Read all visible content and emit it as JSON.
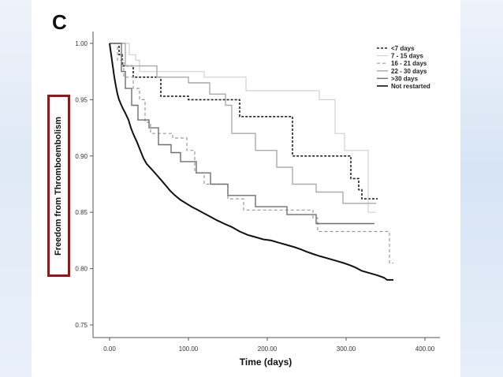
{
  "panel_label": "C",
  "chart_data": {
    "type": "line",
    "title": "",
    "xlabel": "Time (days)",
    "ylabel": "Freedom from Thromboembolism",
    "xlim": [
      0,
      400
    ],
    "ylim": [
      0.75,
      1.0
    ],
    "x_ticks": [
      0,
      100,
      200,
      300,
      400
    ],
    "x_tick_labels": [
      "0.00",
      "100.00",
      "200.00",
      "300.00",
      "400.00"
    ],
    "y_ticks": [
      0.75,
      0.8,
      0.85,
      0.9,
      0.95,
      1.0
    ],
    "y_tick_labels": [
      "0.75",
      "0.80",
      "0.85",
      "0.90",
      "0.95",
      "1.00"
    ],
    "legend_position": "top-right",
    "series": [
      {
        "name": "<7 days",
        "color": "#222222",
        "dash": "3,2",
        "width": 1.6,
        "points": [
          [
            0,
            1.0
          ],
          [
            12,
            1.0
          ],
          [
            12,
            0.99
          ],
          [
            16,
            0.99
          ],
          [
            16,
            0.98
          ],
          [
            30,
            0.98
          ],
          [
            30,
            0.97
          ],
          [
            65,
            0.97
          ],
          [
            65,
            0.953
          ],
          [
            100,
            0.953
          ],
          [
            100,
            0.95
          ],
          [
            165,
            0.95
          ],
          [
            165,
            0.935
          ],
          [
            232,
            0.935
          ],
          [
            232,
            0.9
          ],
          [
            306,
            0.9
          ],
          [
            306,
            0.88
          ],
          [
            316,
            0.88
          ],
          [
            316,
            0.87
          ],
          [
            320,
            0.87
          ],
          [
            320,
            0.862
          ],
          [
            340,
            0.862
          ]
        ]
      },
      {
        "name": "7 - 15 days",
        "color": "#d0d0d0",
        "dash": "",
        "width": 1.2,
        "points": [
          [
            0,
            1.0
          ],
          [
            25,
            1.0
          ],
          [
            25,
            0.99
          ],
          [
            33,
            0.99
          ],
          [
            33,
            0.985
          ],
          [
            38,
            0.985
          ],
          [
            38,
            0.975
          ],
          [
            120,
            0.975
          ],
          [
            120,
            0.97
          ],
          [
            173,
            0.97
          ],
          [
            173,
            0.958
          ],
          [
            266,
            0.958
          ],
          [
            266,
            0.95
          ],
          [
            286,
            0.95
          ],
          [
            286,
            0.92
          ],
          [
            298,
            0.92
          ],
          [
            298,
            0.905
          ],
          [
            328,
            0.905
          ],
          [
            328,
            0.85
          ],
          [
            338,
            0.85
          ]
        ]
      },
      {
        "name": "16 - 21 days",
        "color": "#9a9a9a",
        "dash": "4,3",
        "width": 1.2,
        "points": [
          [
            0,
            1.0
          ],
          [
            10,
            1.0
          ],
          [
            10,
            0.985
          ],
          [
            18,
            0.985
          ],
          [
            18,
            0.97
          ],
          [
            30,
            0.97
          ],
          [
            30,
            0.96
          ],
          [
            38,
            0.96
          ],
          [
            38,
            0.95
          ],
          [
            45,
            0.95
          ],
          [
            45,
            0.93
          ],
          [
            52,
            0.93
          ],
          [
            52,
            0.92
          ],
          [
            80,
            0.92
          ],
          [
            80,
            0.916
          ],
          [
            98,
            0.916
          ],
          [
            98,
            0.905
          ],
          [
            108,
            0.905
          ],
          [
            108,
            0.885
          ],
          [
            120,
            0.885
          ],
          [
            120,
            0.875
          ],
          [
            150,
            0.875
          ],
          [
            150,
            0.862
          ],
          [
            170,
            0.862
          ],
          [
            170,
            0.852
          ],
          [
            258,
            0.852
          ],
          [
            258,
            0.845
          ],
          [
            264,
            0.845
          ],
          [
            264,
            0.833
          ],
          [
            355,
            0.833
          ],
          [
            355,
            0.805
          ],
          [
            360,
            0.805
          ]
        ]
      },
      {
        "name": "22 - 30 days",
        "color": "#aaaaaa",
        "dash": "",
        "width": 1.4,
        "points": [
          [
            0,
            1.0
          ],
          [
            20,
            1.0
          ],
          [
            20,
            0.98
          ],
          [
            60,
            0.98
          ],
          [
            60,
            0.97
          ],
          [
            100,
            0.97
          ],
          [
            100,
            0.965
          ],
          [
            127,
            0.965
          ],
          [
            127,
            0.955
          ],
          [
            147,
            0.955
          ],
          [
            147,
            0.945
          ],
          [
            155,
            0.945
          ],
          [
            155,
            0.92
          ],
          [
            185,
            0.92
          ],
          [
            185,
            0.905
          ],
          [
            212,
            0.905
          ],
          [
            212,
            0.89
          ],
          [
            232,
            0.89
          ],
          [
            232,
            0.875
          ],
          [
            262,
            0.875
          ],
          [
            262,
            0.868
          ],
          [
            296,
            0.868
          ],
          [
            296,
            0.858
          ],
          [
            338,
            0.858
          ]
        ]
      },
      {
        "name": ">30 days",
        "color": "#6f6f6f",
        "dash": "",
        "width": 1.4,
        "points": [
          [
            0,
            1.0
          ],
          [
            15,
            1.0
          ],
          [
            15,
            0.975
          ],
          [
            20,
            0.975
          ],
          [
            20,
            0.96
          ],
          [
            28,
            0.96
          ],
          [
            28,
            0.945
          ],
          [
            36,
            0.945
          ],
          [
            36,
            0.932
          ],
          [
            50,
            0.932
          ],
          [
            50,
            0.925
          ],
          [
            62,
            0.925
          ],
          [
            62,
            0.91
          ],
          [
            78,
            0.91
          ],
          [
            78,
            0.903
          ],
          [
            90,
            0.903
          ],
          [
            90,
            0.895
          ],
          [
            110,
            0.895
          ],
          [
            110,
            0.885
          ],
          [
            128,
            0.885
          ],
          [
            128,
            0.875
          ],
          [
            150,
            0.875
          ],
          [
            150,
            0.865
          ],
          [
            185,
            0.865
          ],
          [
            185,
            0.855
          ],
          [
            225,
            0.855
          ],
          [
            225,
            0.848
          ],
          [
            262,
            0.848
          ],
          [
            262,
            0.84
          ],
          [
            336,
            0.84
          ]
        ]
      },
      {
        "name": "Not restarted",
        "color": "#111111",
        "dash": "",
        "width": 2.0,
        "points": [
          [
            0,
            1.0
          ],
          [
            2,
            0.99
          ],
          [
            4,
            0.98
          ],
          [
            6,
            0.97
          ],
          [
            8,
            0.962
          ],
          [
            10,
            0.955
          ],
          [
            12,
            0.95
          ],
          [
            15,
            0.945
          ],
          [
            17,
            0.942
          ],
          [
            20,
            0.938
          ],
          [
            24,
            0.932
          ],
          [
            27,
            0.925
          ],
          [
            31,
            0.918
          ],
          [
            35,
            0.912
          ],
          [
            39,
            0.905
          ],
          [
            43,
            0.898
          ],
          [
            47,
            0.893
          ],
          [
            51,
            0.89
          ],
          [
            55,
            0.887
          ],
          [
            60,
            0.883
          ],
          [
            65,
            0.879
          ],
          [
            71,
            0.874
          ],
          [
            77,
            0.869
          ],
          [
            83,
            0.865
          ],
          [
            90,
            0.861
          ],
          [
            97,
            0.858
          ],
          [
            104,
            0.855
          ],
          [
            112,
            0.852
          ],
          [
            120,
            0.849
          ],
          [
            128,
            0.846
          ],
          [
            136,
            0.843
          ],
          [
            145,
            0.84
          ],
          [
            155,
            0.837
          ],
          [
            165,
            0.833
          ],
          [
            175,
            0.83
          ],
          [
            185,
            0.828
          ],
          [
            195,
            0.826
          ],
          [
            205,
            0.825
          ],
          [
            215,
            0.823
          ],
          [
            225,
            0.821
          ],
          [
            235,
            0.819
          ],
          [
            243,
            0.817
          ],
          [
            250,
            0.815
          ],
          [
            258,
            0.813
          ],
          [
            267,
            0.811
          ],
          [
            277,
            0.809
          ],
          [
            287,
            0.807
          ],
          [
            297,
            0.805
          ],
          [
            305,
            0.803
          ],
          [
            312,
            0.801
          ],
          [
            320,
            0.798
          ],
          [
            330,
            0.796
          ],
          [
            340,
            0.794
          ],
          [
            348,
            0.792
          ],
          [
            352,
            0.79
          ],
          [
            360,
            0.79
          ]
        ]
      }
    ]
  }
}
